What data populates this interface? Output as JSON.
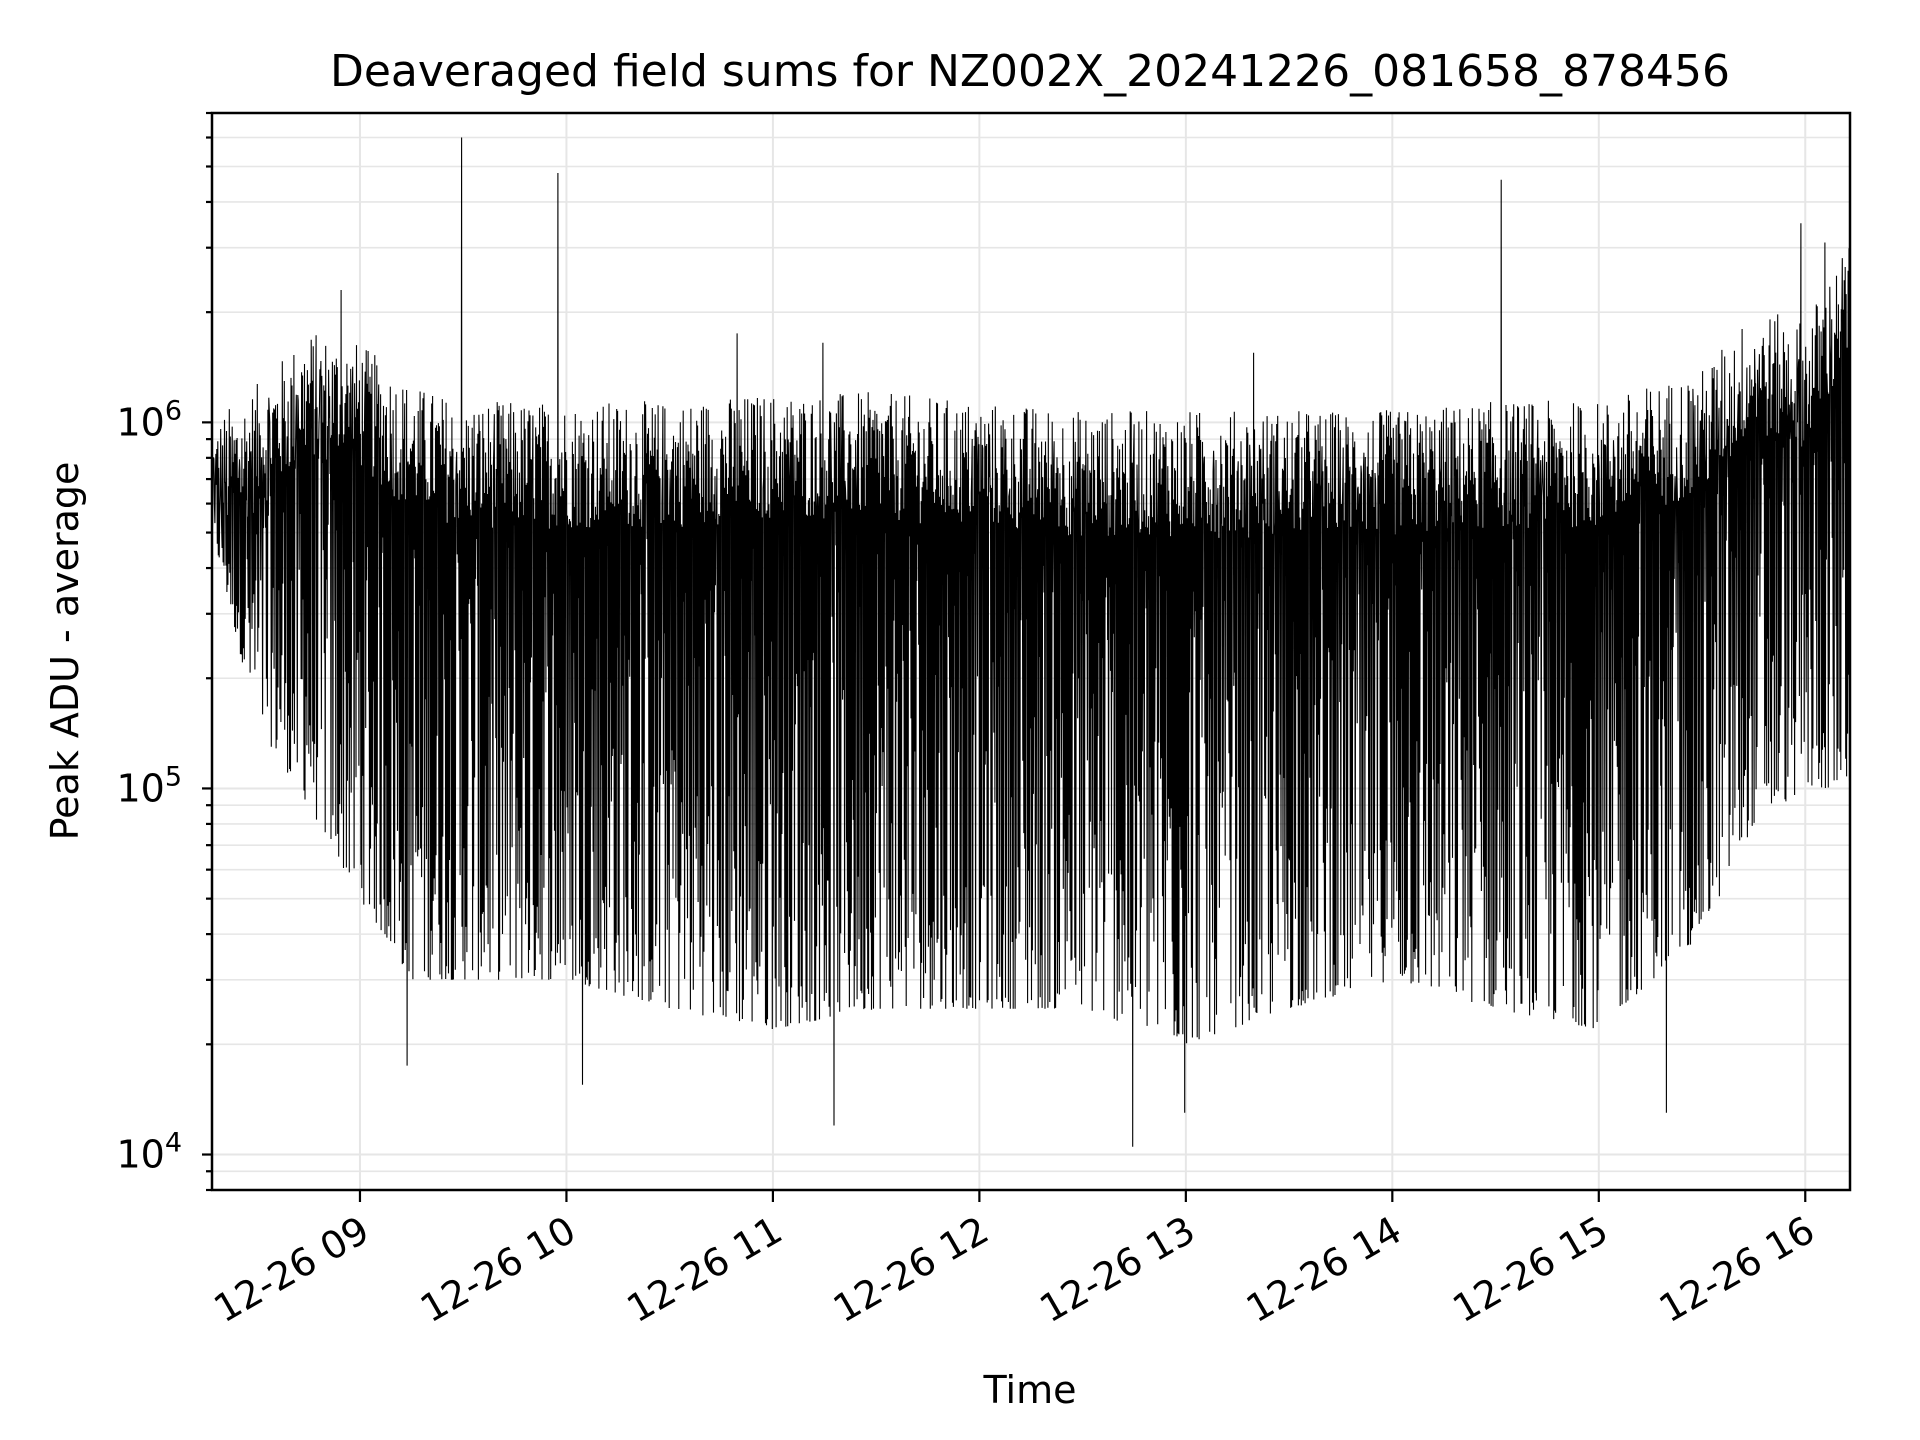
{
  "chart_data": {
    "type": "line",
    "title": "Deaveraged field sums for NZ002X_20241226_081658_878456",
    "xlabel": "Time",
    "ylabel": "Peak ADU - average",
    "yscale": "log",
    "grid": true,
    "xlim": [
      "2024-12-26 08:17",
      "2024-12-26 16:13"
    ],
    "ylim": [
      8000,
      7000000
    ],
    "x_ticks": [
      "12-26 09",
      "12-26 10",
      "12-26 11",
      "12-26 12",
      "12-26 13",
      "12-26 14",
      "12-26 15",
      "12-26 16"
    ],
    "y_ticks": [
      {
        "value": 10000,
        "base": "10",
        "exp": "4"
      },
      {
        "value": 100000,
        "base": "10",
        "exp": "5"
      },
      {
        "value": 1000000,
        "base": "10",
        "exp": "6"
      }
    ],
    "series": [
      {
        "color": "#000000",
        "envelope": {
          "x": [
            "2024-12-26 08:17",
            "2024-12-26 08:30",
            "2024-12-26 08:45",
            "2024-12-26 09:00",
            "2024-12-26 09:15",
            "2024-12-26 09:30",
            "2024-12-26 10:00",
            "2024-12-26 10:30",
            "2024-12-26 11:00",
            "2024-12-26 11:30",
            "2024-12-26 12:00",
            "2024-12-26 12:30",
            "2024-12-26 13:00",
            "2024-12-26 13:30",
            "2024-12-26 14:00",
            "2024-12-26 14:30",
            "2024-12-26 15:00",
            "2024-12-26 15:30",
            "2024-12-26 15:45",
            "2024-12-26 16:00",
            "2024-12-26 16:13"
          ],
          "upper": [
            800000,
            1000000,
            1400000,
            1300000,
            1000000,
            900000,
            900000,
            900000,
            950000,
            950000,
            900000,
            850000,
            850000,
            850000,
            850000,
            900000,
            900000,
            1100000,
            1600000,
            1500000,
            2500000
          ],
          "lower": [
            500000,
            150000,
            90000,
            50000,
            30000,
            30000,
            30000,
            25000,
            22000,
            25000,
            25000,
            25000,
            20000,
            25000,
            30000,
            25000,
            22000,
            40000,
            80000,
            100000,
            100000
          ]
        },
        "spikes": [
          {
            "x": "2024-12-26 09:30",
            "y": 6000000
          },
          {
            "x": "2024-12-26 09:58",
            "y": 4800000
          },
          {
            "x": "2024-12-26 14:32",
            "y": 4600000
          },
          {
            "x": "2024-12-26 15:59",
            "y": 3500000
          },
          {
            "x": "2024-12-26 16:06",
            "y": 3100000
          },
          {
            "x": "2024-12-26 08:55",
            "y": 2300000
          },
          {
            "x": "2024-12-26 16:10",
            "y": 2100000
          },
          {
            "x": "2024-12-26 10:50",
            "y": 1750000
          },
          {
            "x": "2024-12-26 11:15",
            "y": 1650000
          },
          {
            "x": "2024-12-26 13:20",
            "y": 1550000
          }
        ],
        "dips": [
          {
            "x": "2024-12-26 12:45",
            "y": 10500
          },
          {
            "x": "2024-12-26 11:18",
            "y": 12000
          },
          {
            "x": "2024-12-26 15:20",
            "y": 13000
          },
          {
            "x": "2024-12-26 13:00",
            "y": 13000
          },
          {
            "x": "2024-12-26 09:14",
            "y": 17500
          },
          {
            "x": "2024-12-26 10:05",
            "y": 15500
          }
        ]
      }
    ]
  }
}
